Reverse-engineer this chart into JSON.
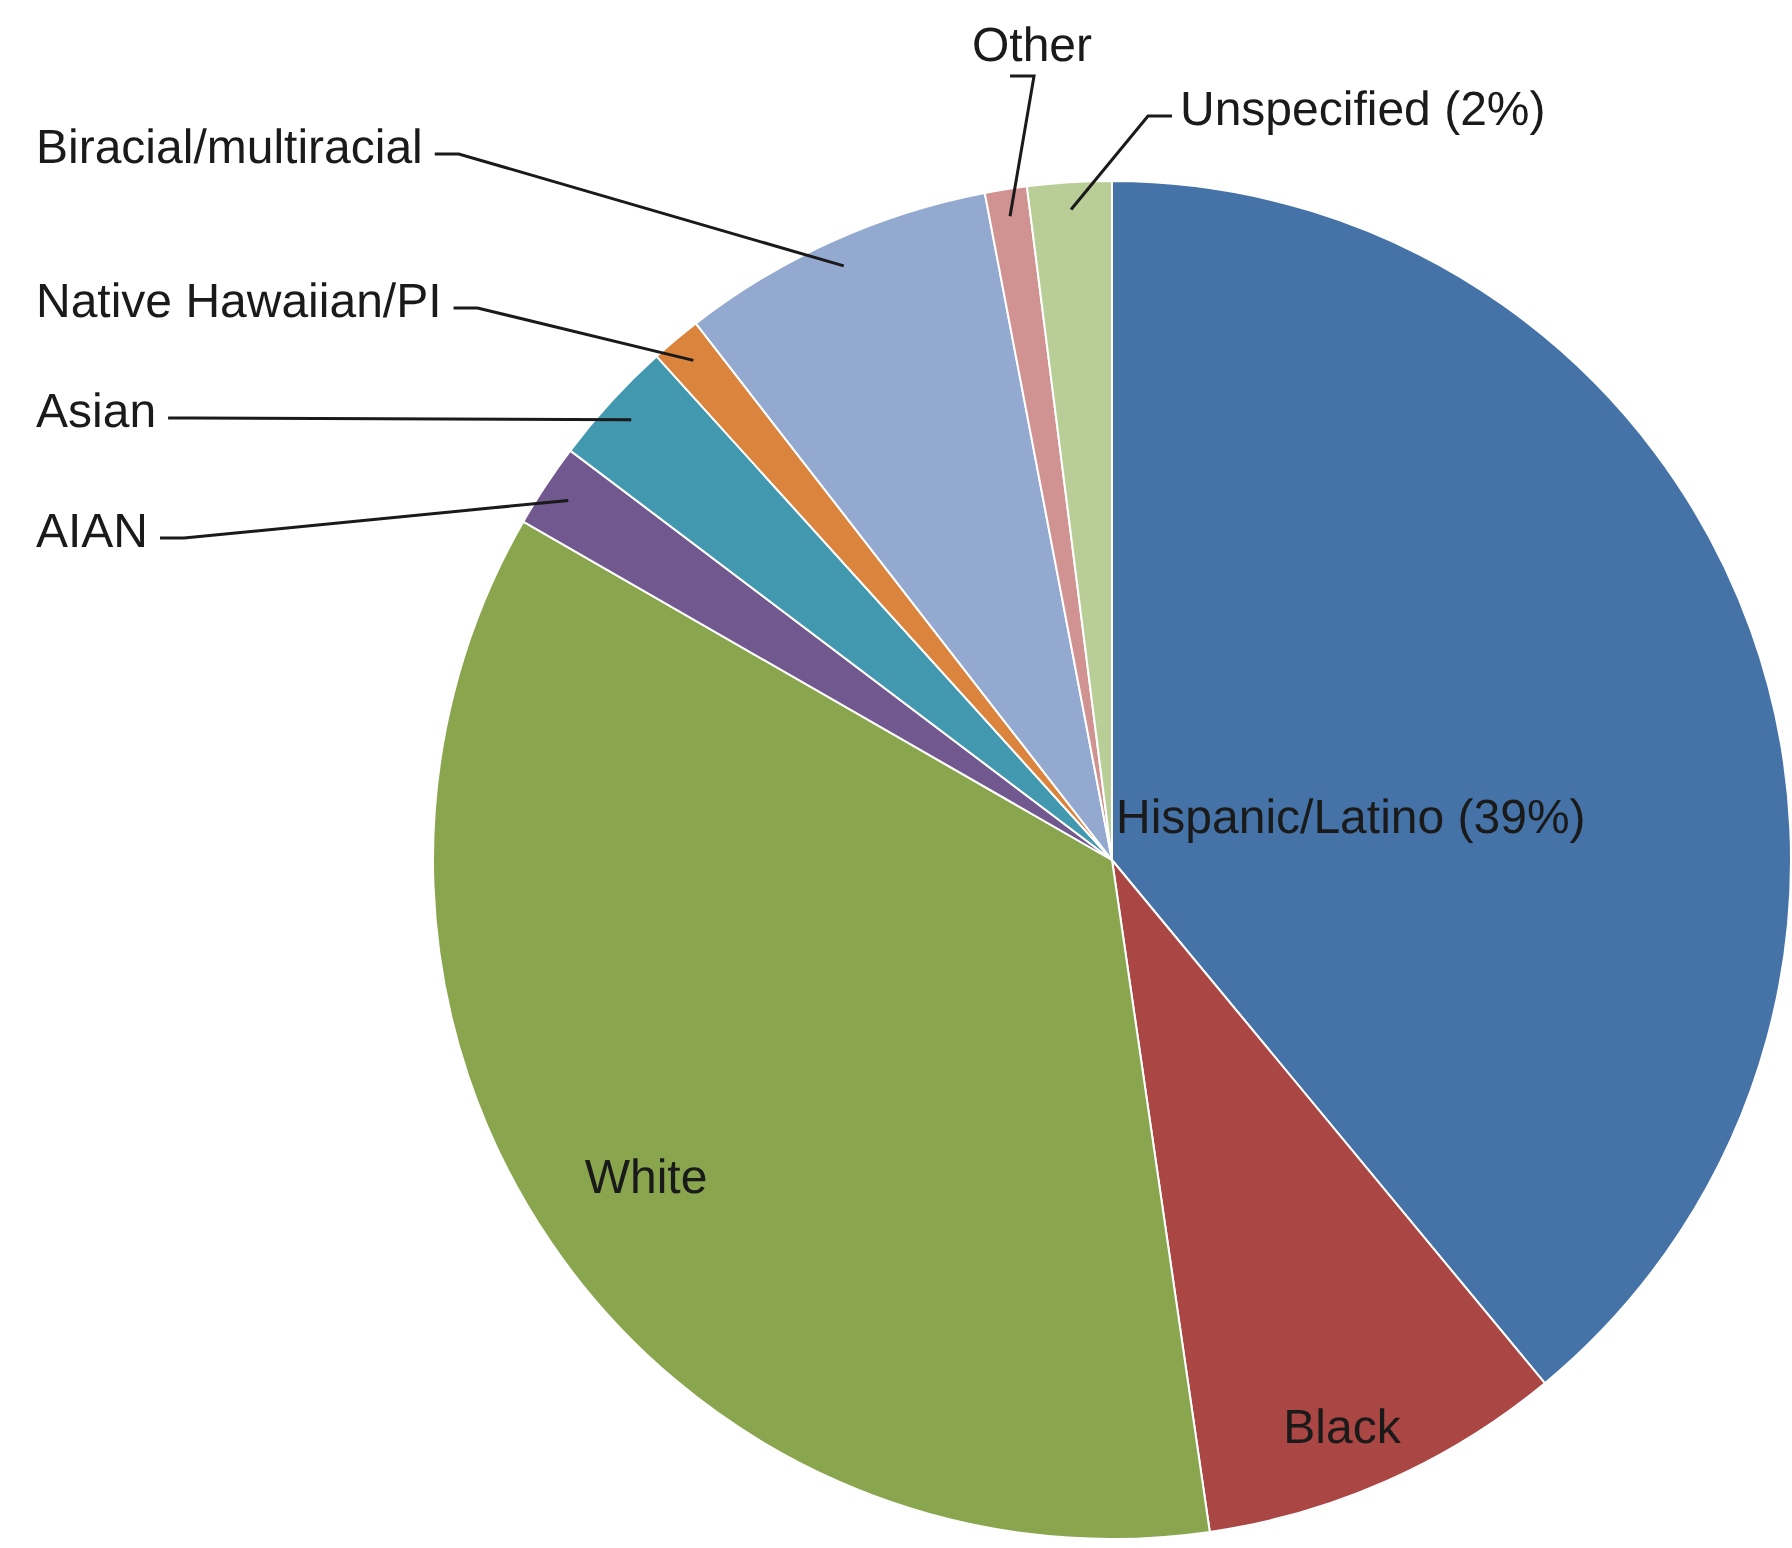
{
  "chart_data": {
    "type": "pie",
    "categories": [
      "Hispanic/Latino (39%)",
      "Black",
      "White",
      "AIAN",
      "Asian",
      "Native Hawaiian/PI",
      "Biracial/multiracial",
      "Other",
      "Unspecified (2%)"
    ],
    "values": [
      39,
      8.7,
      35.6,
      2,
      3,
      1.2,
      7.5,
      1,
      2
    ],
    "colors": [
      "#4572a7",
      "#aa4643",
      "#89a54e",
      "#71588f",
      "#4198af",
      "#db843d",
      "#93a9cf",
      "#d19392",
      "#b9cd96"
    ],
    "legend": false
  }
}
